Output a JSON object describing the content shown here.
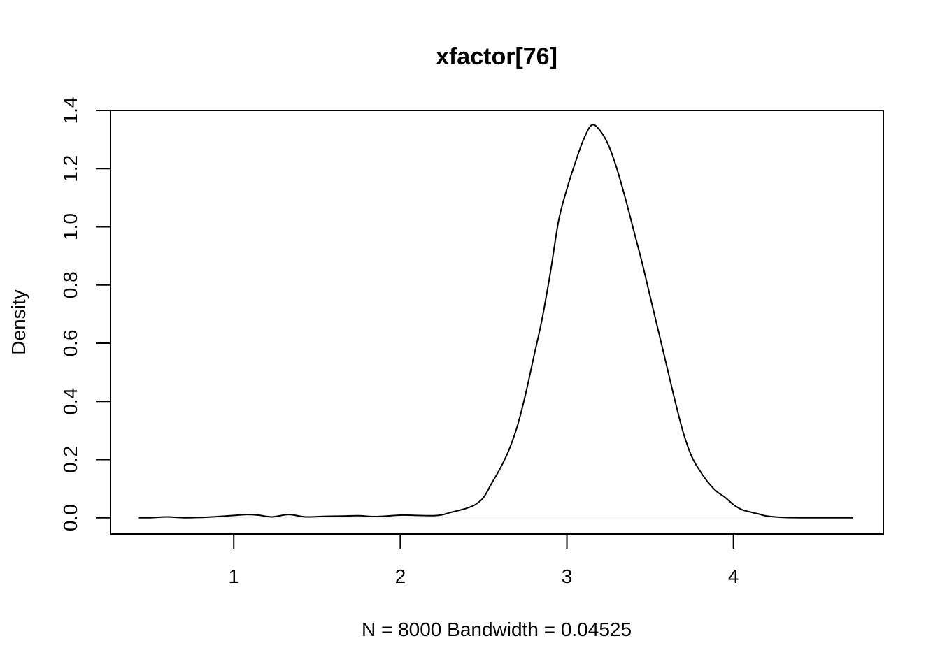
{
  "chart_data": {
    "type": "line",
    "title": "xfactor[76]",
    "xlabel": "N = 8000   Bandwidth = 0.04525",
    "ylabel": "Density",
    "xlim": [
      0.26,
      4.9
    ],
    "ylim": [
      -0.056,
      1.4
    ],
    "x_ticks": [
      1,
      2,
      3,
      4
    ],
    "y_ticks": [
      0.0,
      0.2,
      0.4,
      0.6,
      0.8,
      1.0,
      1.2,
      1.4
    ],
    "x_tick_labels": [
      "1",
      "2",
      "3",
      "4"
    ],
    "y_tick_labels": [
      "0.0",
      "0.2",
      "0.4",
      "0.6",
      "0.8",
      "1.0",
      "1.2",
      "1.4"
    ],
    "grid": false,
    "legend": "none",
    "series": [
      {
        "x": [
          0.43,
          0.5,
          0.6,
          0.7,
          0.8,
          0.9,
          1.0,
          1.08,
          1.15,
          1.23,
          1.33,
          1.43,
          1.55,
          1.65,
          1.75,
          1.85,
          2.0,
          2.1,
          2.2,
          2.25,
          2.3,
          2.35,
          2.4,
          2.45,
          2.5,
          2.55,
          2.6,
          2.65,
          2.7,
          2.75,
          2.8,
          2.85,
          2.9,
          2.95,
          3.0,
          3.05,
          3.1,
          3.15,
          3.2,
          3.25,
          3.3,
          3.35,
          3.4,
          3.45,
          3.5,
          3.55,
          3.6,
          3.65,
          3.7,
          3.75,
          3.8,
          3.85,
          3.9,
          3.95,
          4.0,
          4.05,
          4.1,
          4.15,
          4.2,
          4.3,
          4.4,
          4.5,
          4.6,
          4.72
        ],
        "y": [
          0.0,
          0.0,
          0.003,
          0.0,
          0.001,
          0.004,
          0.008,
          0.011,
          0.009,
          0.003,
          0.011,
          0.003,
          0.005,
          0.006,
          0.007,
          0.004,
          0.009,
          0.008,
          0.007,
          0.01,
          0.018,
          0.025,
          0.033,
          0.045,
          0.07,
          0.12,
          0.17,
          0.23,
          0.31,
          0.42,
          0.55,
          0.68,
          0.84,
          1.02,
          1.13,
          1.22,
          1.3,
          1.35,
          1.33,
          1.28,
          1.2,
          1.1,
          0.99,
          0.88,
          0.76,
          0.64,
          0.52,
          0.4,
          0.29,
          0.21,
          0.16,
          0.12,
          0.09,
          0.07,
          0.045,
          0.028,
          0.02,
          0.013,
          0.006,
          0.001,
          0.0,
          0.0,
          0.0,
          0.0
        ]
      }
    ]
  }
}
